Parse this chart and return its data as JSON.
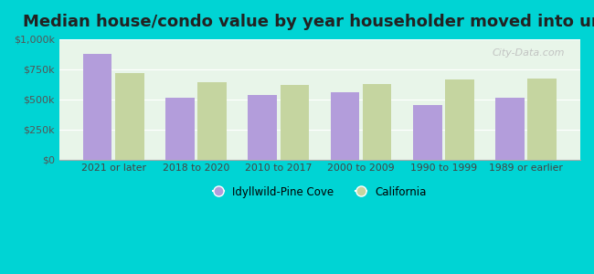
{
  "title": "Median house/condo value by year householder moved into unit",
  "categories": [
    "2021 or later",
    "2018 to 2020",
    "2010 to 2017",
    "2000 to 2009",
    "1990 to 1999",
    "1989 or earlier"
  ],
  "idyllwild_values": [
    875000,
    510000,
    535000,
    555000,
    450000,
    510000
  ],
  "california_values": [
    720000,
    640000,
    620000,
    630000,
    665000,
    670000
  ],
  "idyllwild_color": "#b39ddb",
  "california_color": "#c5d5a0",
  "background_outer": "#00d4d4",
  "background_inner": "#e8f5e9",
  "title_fontsize": 13,
  "ylim": [
    0,
    1000000
  ],
  "yticks": [
    0,
    250000,
    500000,
    750000,
    1000000
  ],
  "ytick_labels": [
    "$0",
    "$250k",
    "$500k",
    "$750k",
    "$1,000k"
  ],
  "legend_idyllwild": "Idyllwild-Pine Cove",
  "legend_california": "California",
  "watermark_text": "City-Data.com"
}
